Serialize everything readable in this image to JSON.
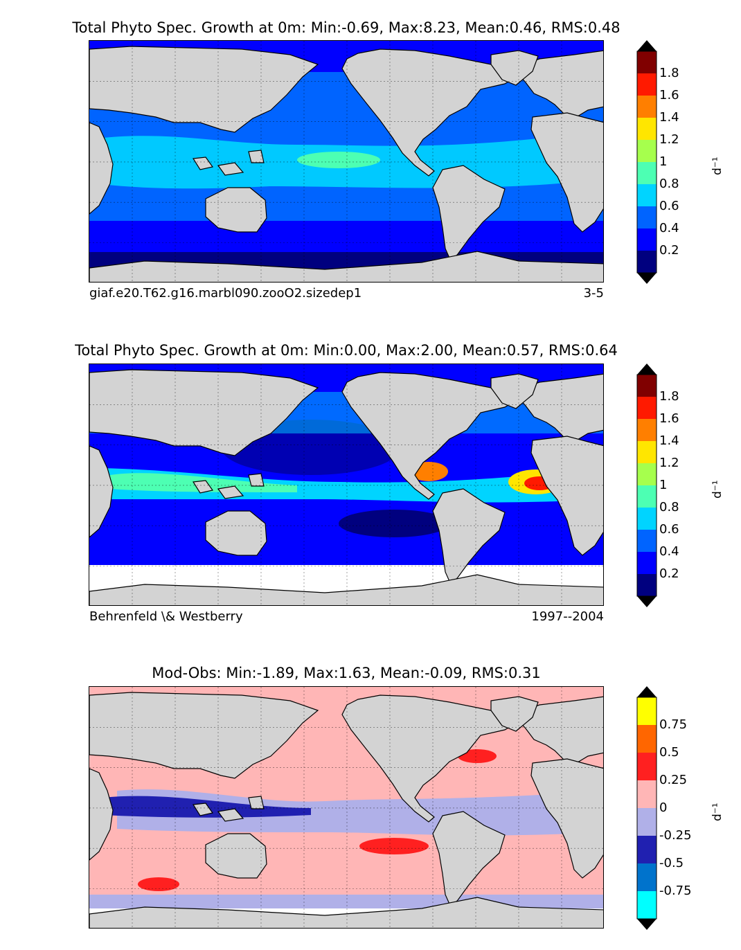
{
  "panels": [
    {
      "title": "Total Phyto Spec. Growth at 0m: Min:-0.69, Max:8.23, Mean:0.46, RMS:0.48",
      "foot_left": "giaf.e20.T62.g16.marbl090.zooO2.sizedep1",
      "foot_right": "3-5",
      "cbar": {
        "ticks": [
          "0.2",
          "0.4",
          "0.6",
          "0.8",
          "1",
          "1.2",
          "1.4",
          "1.6",
          "1.8"
        ],
        "colors": [
          "#00007f",
          "#0000ff",
          "#0064ff",
          "#00d4ff",
          "#4dffb3",
          "#a6ff4d",
          "#ffe600",
          "#ff7f00",
          "#ff1a00",
          "#800000"
        ],
        "under": "#000000",
        "over": "#000000",
        "unit": "d⁻¹"
      },
      "map_palette": {
        "ocean_main": "#0064ff",
        "ocean_low": "#0000ff",
        "ocean_lowest": "#00007f",
        "ocean_mid": "#00d4ff",
        "ocean_high": "#4dffb3"
      }
    },
    {
      "title": "Total Phyto Spec. Growth at 0m: Min:0.00, Max:2.00, Mean:0.57, RMS:0.64",
      "foot_left": "Behrenfeld \\& Westberry",
      "foot_right": "1997--2004",
      "cbar": {
        "ticks": [
          "0.2",
          "0.4",
          "0.6",
          "0.8",
          "1",
          "1.2",
          "1.4",
          "1.6",
          "1.8"
        ],
        "colors": [
          "#00007f",
          "#0000ff",
          "#0064ff",
          "#00d4ff",
          "#4dffb3",
          "#a6ff4d",
          "#ffe600",
          "#ff7f00",
          "#ff1a00",
          "#800000"
        ],
        "under": "#000000",
        "over": "#000000",
        "unit": "d⁻¹"
      },
      "map_palette": {
        "ocean_main": "#0064ff",
        "ocean_low": "#0000ff",
        "ocean_lowest": "#00007f",
        "ocean_mid": "#00d4ff",
        "ocean_high": "#4dffb3"
      }
    },
    {
      "title": "Mod-Obs: Min:-1.89, Max:1.63, Mean:-0.09, RMS:0.31",
      "foot_left": "",
      "foot_right": "",
      "cbar": {
        "ticks": [
          "-0.75",
          "-0.5",
          "-0.25",
          "0",
          "0.25",
          "0.5",
          "0.75"
        ],
        "colors": [
          "#00ffff",
          "#0073cc",
          "#2020b0",
          "#b0b0e8",
          "#ffb6b6",
          "#ff2020",
          "#ff6600",
          "#ffff00"
        ],
        "under": "#000000",
        "over": "#000000",
        "unit": "d⁻¹"
      },
      "map_palette": {
        "ocean_main": "#ffb6b6",
        "ocean_low": "#b0b0e8",
        "ocean_lowest": "#2020b0",
        "ocean_mid": "#ff2020",
        "ocean_high": "#00ffff"
      }
    }
  ],
  "chart_data": [
    {
      "type": "heatmap",
      "title": "Total Phyto Spec. Growth at 0m: Min:-0.69, Max:8.23, Mean:0.46, RMS:0.48",
      "stats": {
        "min": -0.69,
        "max": 8.23,
        "mean": 0.46,
        "rms": 0.48
      },
      "colorbar_levels": [
        0,
        0.2,
        0.4,
        0.6,
        0.8,
        1.0,
        1.2,
        1.4,
        1.6,
        1.8,
        2.0
      ],
      "units": "d⁻¹",
      "case": "giaf.e20.T62.g16.marbl090.zooO2.sizedep1",
      "period": "3-5"
    },
    {
      "type": "heatmap",
      "title": "Total Phyto Spec. Growth at 0m: Min:0.00, Max:2.00, Mean:0.57, RMS:0.64",
      "stats": {
        "min": 0.0,
        "max": 2.0,
        "mean": 0.57,
        "rms": 0.64
      },
      "colorbar_levels": [
        0,
        0.2,
        0.4,
        0.6,
        0.8,
        1.0,
        1.2,
        1.4,
        1.6,
        1.8,
        2.0
      ],
      "units": "d⁻¹",
      "source": "Behrenfeld \\& Westberry",
      "period": "1997--2004"
    },
    {
      "type": "heatmap",
      "title": "Mod-Obs: Min:-1.89, Max:1.63, Mean:-0.09, RMS:0.31",
      "stats": {
        "min": -1.89,
        "max": 1.63,
        "mean": -0.09,
        "rms": 0.31
      },
      "colorbar_levels": [
        -1.0,
        -0.75,
        -0.5,
        -0.25,
        0,
        0.25,
        0.5,
        0.75,
        1.0
      ],
      "units": "d⁻¹"
    }
  ]
}
